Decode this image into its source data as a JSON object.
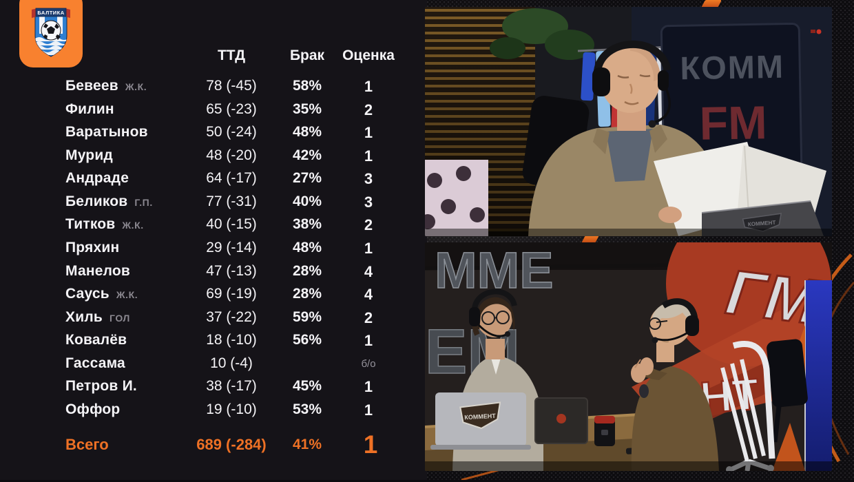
{
  "team": {
    "name": "БАЛТИКА"
  },
  "colors": {
    "accent_orange": "#ee7125",
    "logo_orange": "#f8812f",
    "tag_gray": "#8b8890",
    "panel_bg": "#151318",
    "text_white": "#f4f3f6"
  },
  "stats_table": {
    "headers": {
      "ttd": "ТТД",
      "brak": "Брак",
      "score": "Оценка"
    },
    "rows": [
      {
        "name": "Бевеев",
        "tag": "Ж.К.",
        "ttd": "78 (-45)",
        "brak": "58%",
        "score": "1",
        "muted": false
      },
      {
        "name": "Филин",
        "tag": "",
        "ttd": "65 (-23)",
        "brak": "35%",
        "score": "2",
        "muted": false
      },
      {
        "name": "Варатынов",
        "tag": "",
        "ttd": "50 (-24)",
        "brak": "48%",
        "score": "1",
        "muted": false
      },
      {
        "name": "Мурид",
        "tag": "",
        "ttd": "48 (-20)",
        "brak": "42%",
        "score": "1",
        "muted": false
      },
      {
        "name": "Андраде",
        "tag": "",
        "ttd": "64 (-17)",
        "brak": "27%",
        "score": "3",
        "muted": false
      },
      {
        "name": "Беликов",
        "tag": "Г.П.",
        "ttd": "77 (-31)",
        "brak": "40%",
        "score": "3",
        "muted": false
      },
      {
        "name": "Титков",
        "tag": "Ж.К.",
        "ttd": "40 (-15)",
        "brak": "38%",
        "score": "2",
        "muted": false
      },
      {
        "name": "Пряхин",
        "tag": "",
        "ttd": "29 (-14)",
        "brak": "48%",
        "score": "1",
        "muted": false
      },
      {
        "name": "Манелов",
        "tag": "",
        "ttd": "47 (-13)",
        "brak": "28%",
        "score": "4",
        "muted": false
      },
      {
        "name": "Саусь",
        "tag": "Ж.К.",
        "ttd": "69 (-19)",
        "brak": "28%",
        "score": "4",
        "muted": false
      },
      {
        "name": "Хиль",
        "tag": "ГОЛ",
        "ttd": "37 (-22)",
        "brak": "59%",
        "score": "2",
        "muted": false
      },
      {
        "name": "Ковалёв",
        "tag": "",
        "ttd": "18 (-10)",
        "brak": "56%",
        "score": "1",
        "muted": false
      },
      {
        "name": "Гассама",
        "tag": "",
        "ttd": "10 (-4)",
        "brak": "",
        "score": "б/о",
        "muted": true
      },
      {
        "name": "Петров И.",
        "tag": "",
        "ttd": "38 (-17)",
        "brak": "45%",
        "score": "1",
        "muted": false
      },
      {
        "name": "Оффор",
        "tag": "",
        "ttd": "19 (-10)",
        "brak": "53%",
        "score": "1",
        "muted": false
      }
    ],
    "total": {
      "label": "Всего",
      "ttd": "689 (-284)",
      "brak": "41%",
      "score": "1"
    }
  },
  "video_feeds": {
    "top": {
      "sign_line1": "КОММ",
      "sign_line2": "FM",
      "laptop_logo": "КОММЕНТ"
    },
    "bottom": {
      "laptop_logo": "КОММЕНТ",
      "mural_left": "ММЕ",
      "mural_mid": "ГМ",
      "mural_right": "НТ"
    }
  }
}
